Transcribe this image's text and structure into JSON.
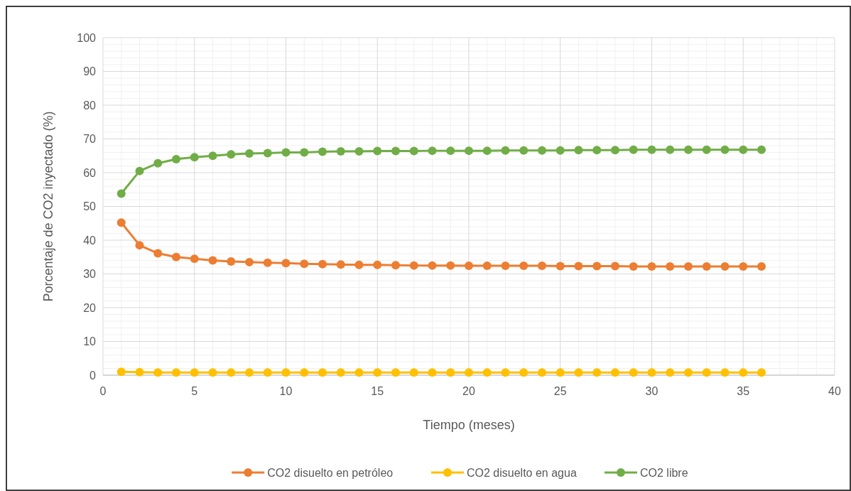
{
  "chart_data": {
    "type": "line",
    "xlabel": "Tiempo (meses)",
    "ylabel": "Porcentaje de CO2 inyectado (%)",
    "x": [
      1,
      2,
      3,
      4,
      5,
      6,
      7,
      8,
      9,
      10,
      11,
      12,
      13,
      14,
      15,
      16,
      17,
      18,
      19,
      20,
      21,
      22,
      23,
      24,
      25,
      26,
      27,
      28,
      29,
      30,
      31,
      32,
      33,
      34,
      35,
      36
    ],
    "series": [
      {
        "name": "CO2 disuelto en petróleo",
        "color": "#ed7d31",
        "values": [
          45.2,
          38.5,
          36.1,
          35,
          34.5,
          34,
          33.7,
          33.5,
          33.3,
          33.2,
          33,
          32.9,
          32.8,
          32.7,
          32.7,
          32.6,
          32.5,
          32.5,
          32.5,
          32.4,
          32.4,
          32.4,
          32.4,
          32.4,
          32.3,
          32.3,
          32.3,
          32.3,
          32.2,
          32.2,
          32.2,
          32.2,
          32.2,
          32.2,
          32.2,
          32.2
        ]
      },
      {
        "name": "CO2 disuelto en agua",
        "color": "#ffc000",
        "values": [
          1,
          0.9,
          0.8,
          0.8,
          0.8,
          0.8,
          0.8,
          0.8,
          0.8,
          0.8,
          0.8,
          0.8,
          0.8,
          0.8,
          0.8,
          0.8,
          0.8,
          0.8,
          0.8,
          0.8,
          0.8,
          0.8,
          0.8,
          0.8,
          0.8,
          0.8,
          0.8,
          0.8,
          0.8,
          0.8,
          0.8,
          0.8,
          0.8,
          0.8,
          0.8,
          0.8
        ]
      },
      {
        "name": "CO2 libre",
        "color": "#70ad47",
        "values": [
          53.8,
          60.5,
          62.8,
          64,
          64.6,
          65,
          65.4,
          65.7,
          65.8,
          66,
          66,
          66.2,
          66.3,
          66.3,
          66.4,
          66.4,
          66.4,
          66.5,
          66.5,
          66.5,
          66.5,
          66.6,
          66.6,
          66.6,
          66.6,
          66.7,
          66.7,
          66.7,
          66.8,
          66.8,
          66.8,
          66.8,
          66.8,
          66.8,
          66.8,
          66.8
        ]
      }
    ],
    "xlim": [
      0,
      40
    ],
    "xticks": [
      0,
      5,
      10,
      15,
      20,
      25,
      30,
      35,
      40
    ],
    "ylim": [
      0,
      100
    ],
    "yticks": [
      0,
      10,
      20,
      30,
      40,
      50,
      60,
      70,
      80,
      90,
      100
    ],
    "grid": true,
    "legend": "bottom",
    "marker": "circle",
    "line_style": "solid"
  }
}
